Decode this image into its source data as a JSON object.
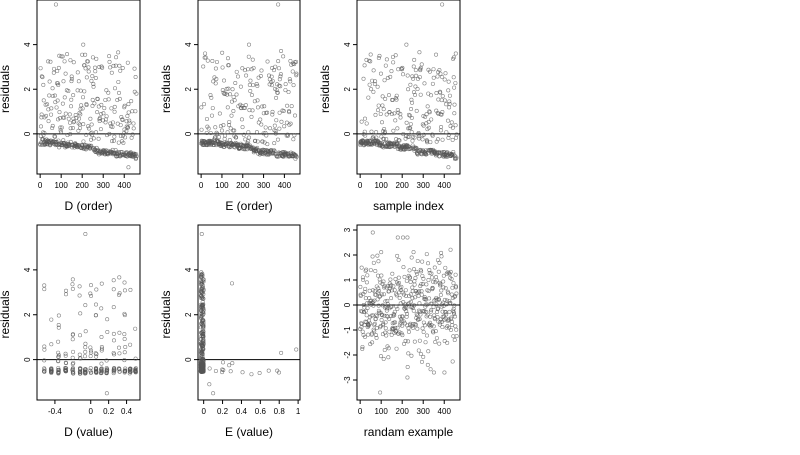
{
  "chart_data": [
    {
      "id": "d-order",
      "type": "scatter",
      "xlabel": "D (order)",
      "ylabel": "residuals",
      "xlim": [
        -15,
        475
      ],
      "ylim": [
        -1.8,
        6.0
      ],
      "xticks": [
        0,
        100,
        200,
        300,
        400
      ],
      "yticks": [
        0,
        2,
        4
      ],
      "hline": 0,
      "grid": false,
      "pattern": "ordered-clusters",
      "params": {
        "seed": 11,
        "n": 460,
        "low_frac": 0.55,
        "outliers": [
          [
            75,
            5.8
          ],
          [
            420,
            -1.5
          ],
          [
            205,
            4.0
          ]
        ]
      }
    },
    {
      "id": "e-order",
      "type": "scatter",
      "xlabel": "E (order)",
      "ylabel": "residuals",
      "xlim": [
        -15,
        475
      ],
      "ylim": [
        -1.8,
        6.0
      ],
      "xticks": [
        0,
        100,
        200,
        300,
        400
      ],
      "yticks": [
        0,
        2,
        4
      ],
      "hline": 0,
      "grid": false,
      "pattern": "ordered-clusters",
      "params": {
        "seed": 23,
        "n": 460,
        "low_frac": 0.55,
        "outliers": [
          [
            370,
            5.8
          ],
          [
            440,
            -1.0
          ],
          [
            230,
            4.0
          ]
        ]
      }
    },
    {
      "id": "sample-index",
      "type": "scatter",
      "xlabel": "sample index",
      "ylabel": "residuals",
      "xlim": [
        -15,
        475
      ],
      "ylim": [
        -1.8,
        6.0
      ],
      "xticks": [
        0,
        100,
        200,
        300,
        400
      ],
      "yticks": [
        0,
        2,
        4
      ],
      "hline": 0,
      "grid": false,
      "pattern": "ordered-clusters",
      "params": {
        "seed": 37,
        "n": 460,
        "low_frac": 0.55,
        "outliers": [
          [
            390,
            5.8
          ],
          [
            420,
            -1.5
          ],
          [
            220,
            4.0
          ]
        ]
      }
    },
    {
      "id": "d-value",
      "type": "scatter",
      "xlabel": "D (value)",
      "ylabel": "residuals",
      "xlim": [
        -0.6,
        0.55
      ],
      "ylim": [
        -1.8,
        6.0
      ],
      "xticks": [
        -0.4,
        0.0,
        0.2,
        0.4
      ],
      "yticks": [
        0,
        2,
        4
      ],
      "hline": 0,
      "grid": false,
      "pattern": "discrete-columns",
      "params": {
        "seed": 51,
        "columns": [
          -0.52,
          -0.44,
          -0.36,
          -0.28,
          -0.2,
          -0.12,
          -0.06,
          0.0,
          0.06,
          0.12,
          0.18,
          0.26,
          0.32,
          0.38,
          0.44,
          0.5
        ],
        "outliers": [
          [
            -0.06,
            5.6
          ],
          [
            0.18,
            -1.5
          ]
        ]
      }
    },
    {
      "id": "e-value",
      "type": "scatter",
      "xlabel": "E (value)",
      "ylabel": "residuals",
      "xlim": [
        -0.06,
        1.02
      ],
      "ylim": [
        -1.8,
        6.0
      ],
      "xticks": [
        0.0,
        0.2,
        0.4,
        0.6,
        0.8,
        1.0
      ],
      "yticks": [
        0,
        2,
        4
      ],
      "hline": 0,
      "grid": false,
      "pattern": "near-zero-stack",
      "params": {
        "seed": 67,
        "n": 360,
        "outliers": [
          [
            -0.02,
            5.6
          ],
          [
            0.3,
            3.4
          ],
          [
            0.1,
            -1.5
          ],
          [
            0.06,
            -1.1
          ],
          [
            0.98,
            0.45
          ],
          [
            0.82,
            0.3
          ]
        ]
      }
    },
    {
      "id": "randam-example",
      "type": "scatter",
      "xlabel": "randam example",
      "ylabel": "residuals",
      "xlim": [
        -15,
        475
      ],
      "ylim": [
        -3.8,
        3.2
      ],
      "xticks": [
        0,
        100,
        200,
        300,
        400
      ],
      "yticks": [
        -3,
        -2,
        -1,
        0,
        1,
        2,
        3
      ],
      "hline": 0,
      "grid": false,
      "pattern": "normal-noise",
      "params": {
        "seed": 89,
        "n": 460,
        "sd": 1.0,
        "outliers": [
          [
            95,
            -3.5
          ],
          [
            225,
            -2.9
          ],
          [
            60,
            2.9
          ]
        ]
      }
    }
  ]
}
